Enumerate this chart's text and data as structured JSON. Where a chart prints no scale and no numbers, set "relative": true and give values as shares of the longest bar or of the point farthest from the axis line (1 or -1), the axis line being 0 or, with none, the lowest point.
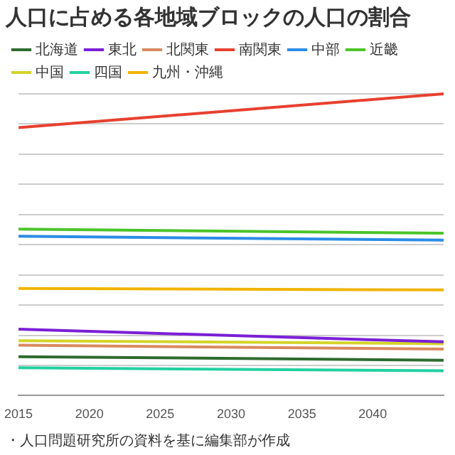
{
  "chart_data": {
    "type": "line",
    "title": "人口に占める各地域ブロックの人口の割合",
    "relative": true,
    "x": [
      2015,
      2045
    ],
    "xlim": [
      2015,
      2045
    ],
    "xticks": [
      2015,
      2020,
      2025,
      2030,
      2035,
      2040
    ],
    "grid": "y",
    "legend": "top",
    "marker": "none",
    "line_style": "solid",
    "series": [
      {
        "name": "北海道",
        "color": "#2e6b2e",
        "values": [
          0.129,
          0.117
        ]
      },
      {
        "name": "東北",
        "color": "#7b1fd6",
        "values": [
          0.22,
          0.178
        ]
      },
      {
        "name": "北関東",
        "color": "#d98a5f",
        "values": [
          0.167,
          0.154
        ]
      },
      {
        "name": "南関東",
        "color": "#e8402f",
        "values": [
          0.888,
          1
        ]
      },
      {
        "name": "中部",
        "color": "#2b8ce6",
        "values": [
          0.528,
          0.515
        ]
      },
      {
        "name": "近畿",
        "color": "#4cc42a",
        "values": [
          0.552,
          0.538
        ]
      },
      {
        "name": "中国",
        "color": "#d4d42a",
        "values": [
          0.182,
          0.172
        ]
      },
      {
        "name": "四国",
        "color": "#22d1a0",
        "values": [
          0.092,
          0.082
        ]
      },
      {
        "name": "九州・沖縄",
        "color": "#f0b400",
        "values": [
          0.355,
          0.35
        ]
      }
    ],
    "annotations": [
      "・人口問題研究所の資料を基に編集部が作成"
    ]
  }
}
